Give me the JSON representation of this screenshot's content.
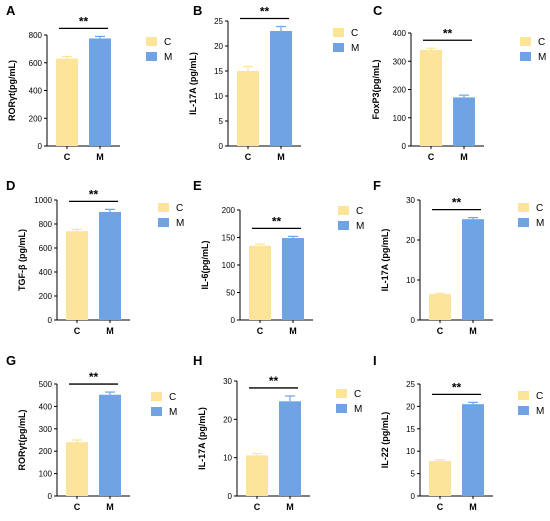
{
  "colors": {
    "C": "#FCE49A",
    "M": "#6FA3E4",
    "axis": "#000000"
  },
  "chart_data": [
    {
      "panel": "A",
      "type": "bar",
      "categories": [
        "C",
        "M"
      ],
      "values": [
        630,
        775
      ],
      "errors": [
        15,
        15
      ],
      "ylabel": "RORγt(pg/mL)",
      "ylim": [
        0,
        800
      ],
      "yticks": [
        0,
        200,
        400,
        600,
        800
      ],
      "significance": "**",
      "legend": [
        "C",
        "M"
      ]
    },
    {
      "panel": "B",
      "type": "bar",
      "categories": [
        "C",
        "M"
      ],
      "values": [
        15,
        23
      ],
      "errors": [
        0.9,
        0.9
      ],
      "ylabel": "IL-17A (pg/mL)",
      "ylim": [
        0,
        25
      ],
      "yticks": [
        0,
        5,
        10,
        15,
        20,
        25
      ],
      "significance": "**",
      "legend": [
        "C",
        "M"
      ]
    },
    {
      "panel": "C",
      "type": "bar",
      "categories": [
        "C",
        "M"
      ],
      "values": [
        340,
        172
      ],
      "errors": [
        6,
        8
      ],
      "ylabel": "FoxP3(pg/mL)",
      "ylim": [
        0,
        400
      ],
      "yticks": [
        0,
        100,
        200,
        300,
        400
      ],
      "significance": "**",
      "legend": [
        "C",
        "M"
      ]
    },
    {
      "panel": "D",
      "type": "bar",
      "categories": [
        "C",
        "M"
      ],
      "values": [
        740,
        900
      ],
      "errors": [
        15,
        22
      ],
      "ylabel": "TGF-β (pg/mL)",
      "ylim": [
        0,
        1000
      ],
      "yticks": [
        0,
        200,
        400,
        600,
        800,
        1000
      ],
      "significance": "**",
      "legend": [
        "C",
        "M"
      ]
    },
    {
      "panel": "E",
      "type": "bar",
      "categories": [
        "C",
        "M"
      ],
      "values": [
        135,
        149
      ],
      "errors": [
        3,
        3
      ],
      "ylabel": "IL-6(pg/mL)",
      "ylim": [
        0,
        200
      ],
      "yticks": [
        0,
        50,
        100,
        150,
        200
      ],
      "significance": "**",
      "legend": [
        "C",
        "M"
      ]
    },
    {
      "panel": "F",
      "type": "bar",
      "categories": [
        "C",
        "M"
      ],
      "values": [
        6.5,
        25.2
      ],
      "errors": [
        0.2,
        0.4
      ],
      "ylabel": "IL-17A (pg/mL)",
      "ylim": [
        0,
        30
      ],
      "yticks": [
        0,
        10,
        20,
        30
      ],
      "significance": "**",
      "legend": [
        "C",
        "M"
      ]
    },
    {
      "panel": "G",
      "type": "bar",
      "categories": [
        "C",
        "M"
      ],
      "values": [
        240,
        452
      ],
      "errors": [
        10,
        12
      ],
      "ylabel": "RORγt(pg/mL)",
      "ylim": [
        0,
        500
      ],
      "yticks": [
        0,
        100,
        200,
        300,
        400,
        500
      ],
      "significance": "**",
      "legend": [
        "C",
        "M"
      ]
    },
    {
      "panel": "H",
      "type": "bar",
      "categories": [
        "C",
        "M"
      ],
      "values": [
        10.6,
        24.7
      ],
      "errors": [
        0.5,
        1.4
      ],
      "ylabel": "IL-17A (pg/mL)",
      "ylim": [
        0,
        30
      ],
      "yticks": [
        0,
        10,
        20,
        30
      ],
      "significance": "**",
      "legend": [
        "C",
        "M"
      ]
    },
    {
      "panel": "I",
      "type": "bar",
      "categories": [
        "C",
        "M"
      ],
      "values": [
        7.8,
        20.5
      ],
      "errors": [
        0.3,
        0.4
      ],
      "ylabel": "IL-22 (pg/mL)",
      "ylim": [
        0,
        25
      ],
      "yticks": [
        0,
        5,
        10,
        15,
        20,
        25
      ],
      "significance": "**",
      "legend": [
        "C",
        "M"
      ]
    }
  ]
}
